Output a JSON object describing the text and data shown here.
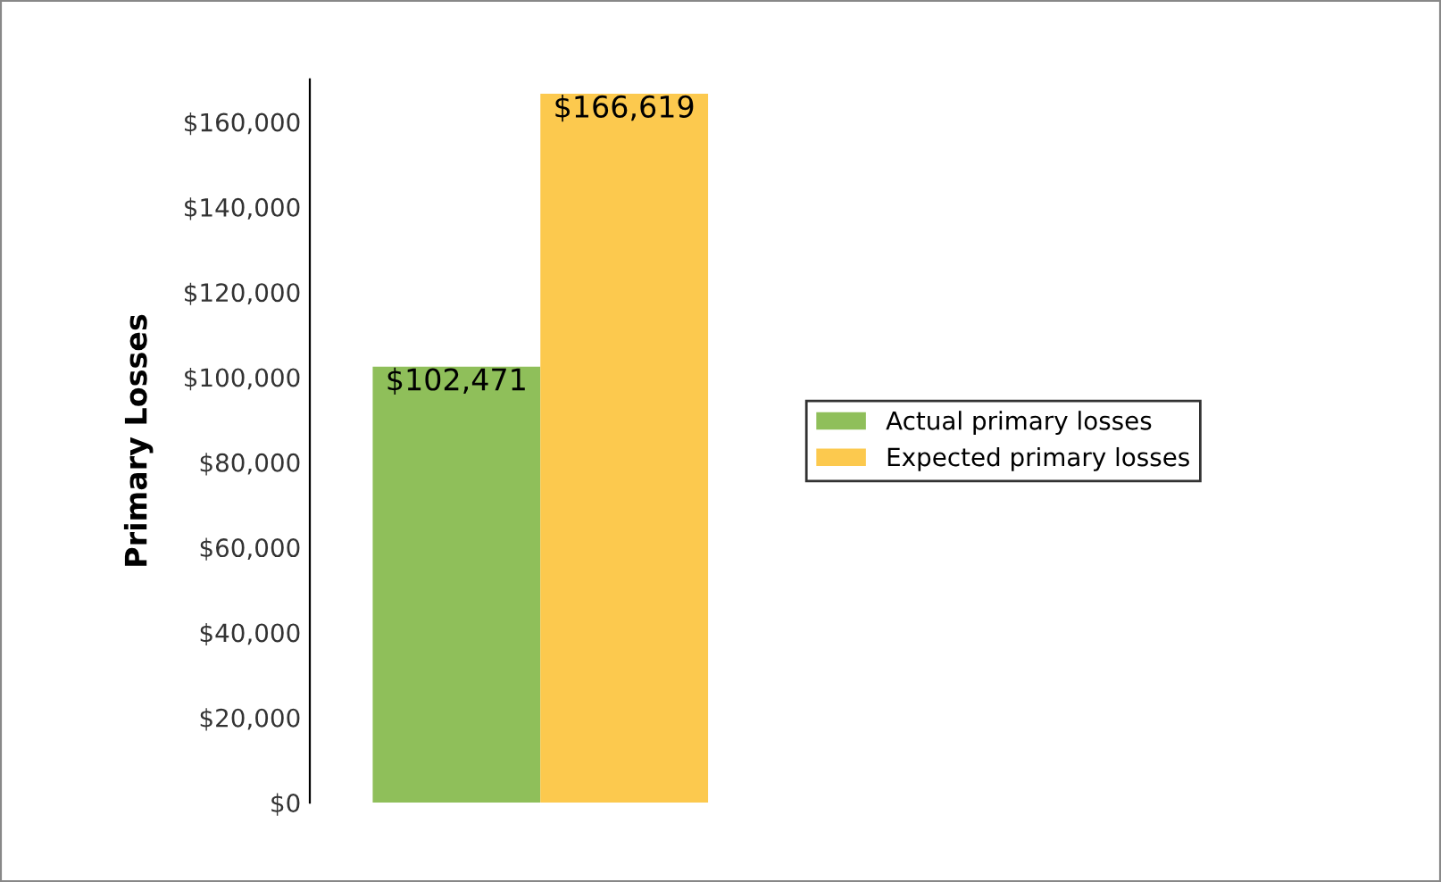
{
  "chart_data": {
    "type": "bar",
    "ylabel": "Primary Losses",
    "categories": [
      null
    ],
    "series": [
      {
        "name": "Actual primary losses",
        "color": "#8fbf5a",
        "values": [
          102471
        ],
        "value_labels": [
          "$102,471"
        ]
      },
      {
        "name": "Expected primary losses",
        "color": "#fcc94e",
        "values": [
          166619
        ],
        "value_labels": [
          "$166,619"
        ]
      }
    ],
    "ylim": [
      0,
      170000
    ],
    "yticks": [
      {
        "value": 0,
        "label": "$0"
      },
      {
        "value": 20000,
        "label": "$20,000"
      },
      {
        "value": 40000,
        "label": "$40,000"
      },
      {
        "value": 60000,
        "label": "$60,000"
      },
      {
        "value": 80000,
        "label": "$80,000"
      },
      {
        "value": 100000,
        "label": "$100,000"
      },
      {
        "value": 120000,
        "label": "$120,000"
      },
      {
        "value": 140000,
        "label": "$140,000"
      },
      {
        "value": 160000,
        "label": "$160,000"
      }
    ],
    "grid": false,
    "legend": "right"
  }
}
